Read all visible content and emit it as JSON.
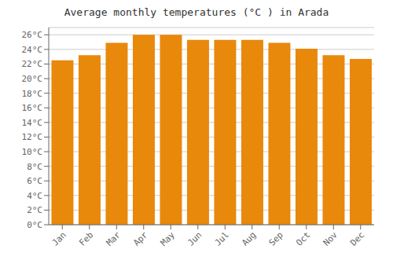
{
  "chart_data": {
    "type": "bar",
    "title": "Average monthly temperatures (°C ) in Arada",
    "categories": [
      "Jan",
      "Feb",
      "Mar",
      "Apr",
      "May",
      "Jun",
      "Jul",
      "Aug",
      "Sep",
      "Oct",
      "Nov",
      "Dec"
    ],
    "values": [
      22.5,
      23.2,
      24.9,
      26.0,
      26.0,
      25.3,
      25.3,
      25.3,
      24.9,
      24.1,
      23.2,
      22.7
    ],
    "color": "#E8890C",
    "ylim": [
      0,
      27
    ],
    "yticks": [
      {
        "value": 0,
        "label": "0°C"
      },
      {
        "value": 2,
        "label": "2°C"
      },
      {
        "value": 4,
        "label": "4°C"
      },
      {
        "value": 6,
        "label": "6°C"
      },
      {
        "value": 8,
        "label": "8°C"
      },
      {
        "value": 10,
        "label": "10°C"
      },
      {
        "value": 12,
        "label": "12°C"
      },
      {
        "value": 14,
        "label": "14°C"
      },
      {
        "value": 16,
        "label": "16°C"
      },
      {
        "value": 18,
        "label": "18°C"
      },
      {
        "value": 20,
        "label": "20°C"
      },
      {
        "value": 22,
        "label": "22°C"
      },
      {
        "value": 24,
        "label": "24°C"
      },
      {
        "value": 26,
        "label": "26°C"
      }
    ],
    "grid": true
  }
}
